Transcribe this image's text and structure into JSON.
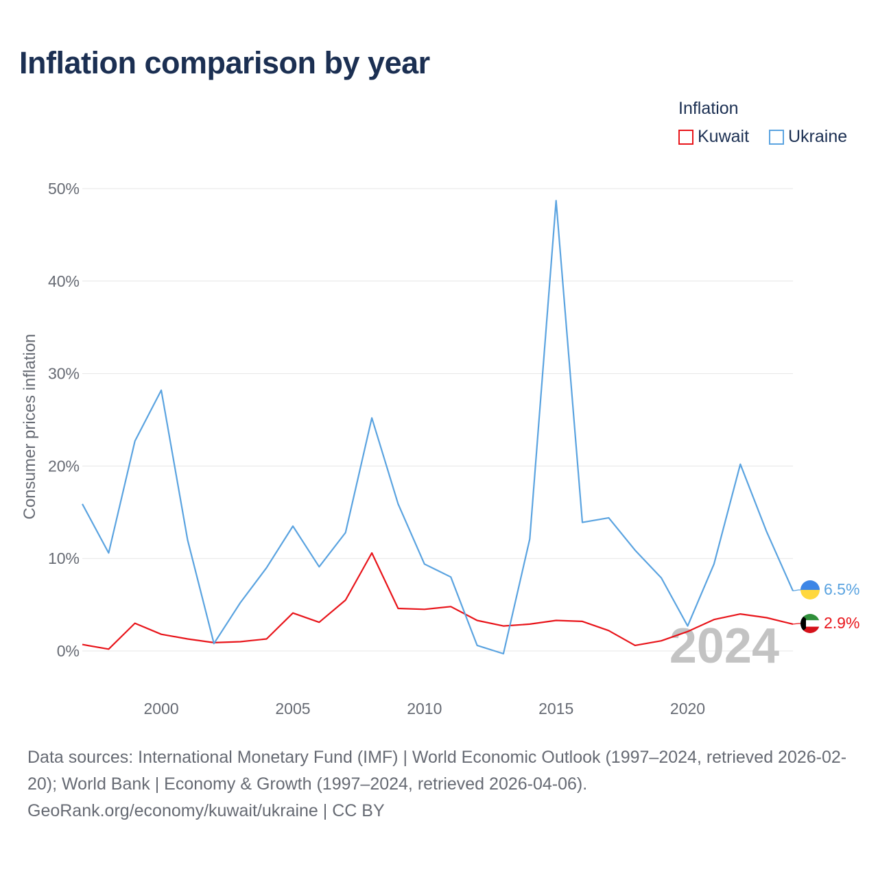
{
  "title": "Inflation comparison by year",
  "legend": {
    "title": "Inflation",
    "items": [
      {
        "label": "Kuwait",
        "color": "#e8141a"
      },
      {
        "label": "Ukraine",
        "color": "#5aa3e0"
      }
    ]
  },
  "footer": {
    "sources": "Data sources: International Monetary Fund (IMF) | World Economic Outlook (1997–2024, retrieved 2026-02-20); World Bank | Economy & Growth (1997–2024, retrieved 2026-04-06).",
    "credit": "GeoRank.org/economy/kuwait/ukraine | CC BY"
  },
  "chart_data": {
    "type": "line",
    "title": "Inflation comparison by year",
    "ylabel": "Consumer prices inflation",
    "xlabel": "",
    "xlim": [
      1997,
      2024
    ],
    "ylim": [
      -5,
      50
    ],
    "yticks": [
      0,
      10,
      20,
      30,
      40,
      50
    ],
    "ytick_labels": [
      "0%",
      "10%",
      "20%",
      "30%",
      "40%",
      "50%"
    ],
    "xticks": [
      2000,
      2005,
      2010,
      2015,
      2020
    ],
    "xtick_labels": [
      "2000",
      "2005",
      "2010",
      "2015",
      "2020"
    ],
    "grid": true,
    "current_year": "2024",
    "x": [
      1997,
      1998,
      1999,
      2000,
      2001,
      2002,
      2003,
      2004,
      2005,
      2006,
      2007,
      2008,
      2009,
      2010,
      2011,
      2012,
      2013,
      2014,
      2015,
      2016,
      2017,
      2018,
      2019,
      2020,
      2021,
      2022,
      2023,
      2024
    ],
    "series": [
      {
        "name": "Kuwait",
        "color": "#e8141a",
        "values": [
          0.7,
          0.2,
          3.0,
          1.8,
          1.3,
          0.9,
          1.0,
          1.3,
          4.1,
          3.1,
          5.5,
          10.6,
          4.6,
          4.5,
          4.8,
          3.3,
          2.7,
          2.9,
          3.3,
          3.2,
          2.2,
          0.6,
          1.1,
          2.1,
          3.4,
          4.0,
          3.6,
          2.9
        ],
        "end_label": "2.9%"
      },
      {
        "name": "Ukraine",
        "color": "#5aa3e0",
        "values": [
          15.9,
          10.6,
          22.7,
          28.2,
          12.0,
          0.8,
          5.2,
          9.0,
          13.5,
          9.1,
          12.8,
          25.2,
          15.9,
          9.4,
          8.0,
          0.6,
          -0.3,
          12.1,
          48.7,
          13.9,
          14.4,
          10.9,
          7.9,
          2.7,
          9.4,
          20.2,
          12.9,
          6.5
        ],
        "end_label": "6.5%"
      }
    ]
  }
}
